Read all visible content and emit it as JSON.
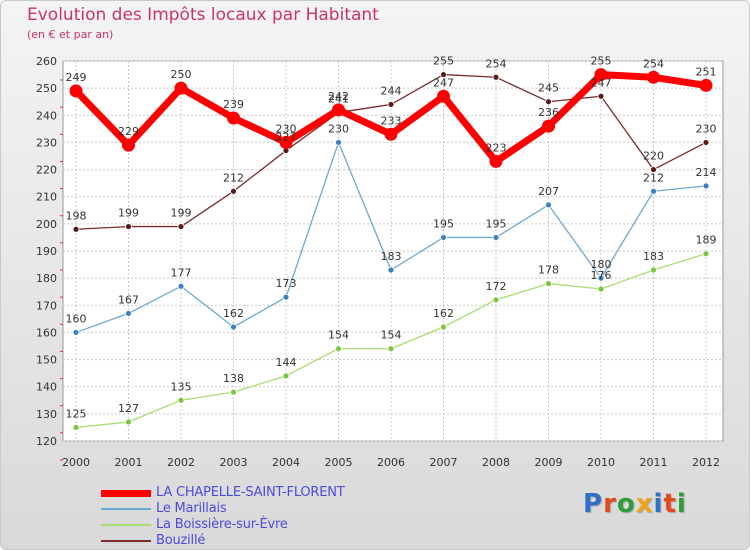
{
  "header": {
    "title": "Evolution des Impôts locaux par Habitant",
    "subtitle": "(en € et par an)"
  },
  "colors": {
    "title": "#cc3366",
    "legend_text": "#4b4bdc",
    "axis_text": "#333333"
  },
  "logo": {
    "text": "Proxiti",
    "letter_colors": [
      "#2f6fc4",
      "#e24a1c",
      "#2f9d3a",
      "#f2a11a",
      "#2f6fc4",
      "#e24a1c",
      "#2f9d3a"
    ]
  },
  "chart_data": {
    "type": "line",
    "x": [
      "2000",
      "2001",
      "2002",
      "2003",
      "2004",
      "2005",
      "2006",
      "2007",
      "2008",
      "2009",
      "2010",
      "2011",
      "2012"
    ],
    "ylim": [
      120,
      260
    ],
    "y_ticks": [
      120,
      130,
      140,
      150,
      160,
      170,
      180,
      190,
      200,
      210,
      220,
      230,
      240,
      250,
      260
    ],
    "grid": true,
    "legend_position": "bottom-left",
    "series": [
      {
        "name": "LA CHAPELLE-SAINT-FLORENT",
        "color": "#ff0000",
        "marker_color": "#ff0000",
        "emphasis": true,
        "values": [
          249,
          229,
          250,
          239,
          230,
          242,
          233,
          247,
          223,
          236,
          255,
          254,
          251
        ]
      },
      {
        "name": "Le Marillais",
        "color": "#6aa9d6",
        "marker_color": "#3c82c2",
        "values": [
          160,
          167,
          177,
          162,
          173,
          230,
          183,
          195,
          195,
          207,
          180,
          212,
          214
        ]
      },
      {
        "name": "La Boissière-sur-Èvre",
        "color": "#a9dc73",
        "marker_color": "#7cc540",
        "values": [
          125,
          127,
          135,
          138,
          144,
          154,
          154,
          162,
          172,
          178,
          176,
          183,
          189
        ]
      },
      {
        "name": "Bouzillé",
        "color": "#7a2b2b",
        "marker_color": "#5a1a1a",
        "values": [
          198,
          199,
          199,
          212,
          227,
          241,
          244,
          255,
          254,
          245,
          247,
          220,
          230
        ]
      }
    ],
    "labels_text": {
      "LA CHAPELLE-SAINT-FLORENT": [
        "249",
        "229",
        "250",
        "239",
        "230",
        "242",
        "233",
        "247",
        "223",
        "236",
        "255",
        "254",
        "251"
      ],
      "Le Marillais": [
        "160",
        "167",
        "177",
        "162",
        "173",
        "230",
        "183",
        "195",
        "195",
        "207",
        "180",
        "212",
        "214"
      ],
      "La Boissière-sur-Èvre": [
        "125",
        "127",
        "135",
        "138",
        "144",
        "154",
        "154",
        "162",
        "172",
        "178",
        "176",
        "183",
        "189"
      ],
      "Bouzillé": [
        "198",
        "199",
        "199",
        "212",
        "227",
        "241",
        "244",
        "255",
        "254",
        "245",
        "247",
        "220",
        "230"
      ]
    }
  }
}
